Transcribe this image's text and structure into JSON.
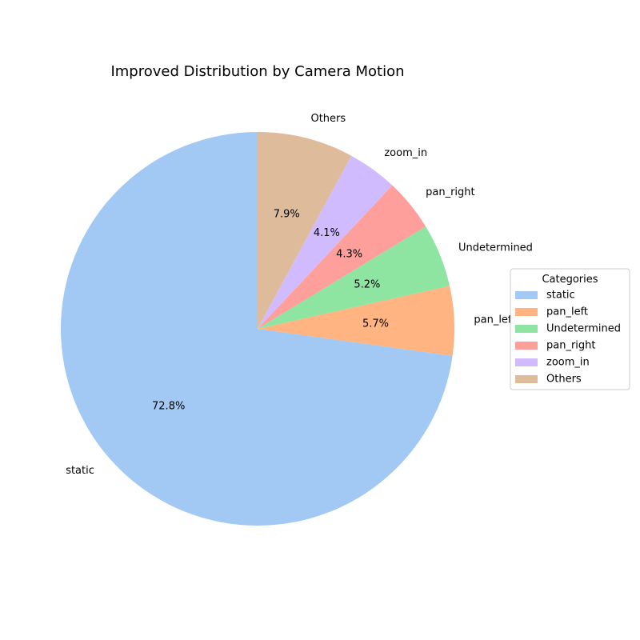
{
  "chart_data": {
    "type": "pie",
    "title": "Improved Distribution by Camera Motion",
    "labels": [
      "static",
      "pan_left",
      "Undetermined",
      "pan_right",
      "zoom_in",
      "Others"
    ],
    "values": [
      72.8,
      5.7,
      5.2,
      4.3,
      4.1,
      7.9
    ],
    "value_labels": [
      "72.8%",
      "5.7%",
      "5.2%",
      "4.3%",
      "4.1%",
      "7.9%"
    ],
    "colors": [
      "#a1c9f4",
      "#ffb482",
      "#8de5a1",
      "#ff9f9b",
      "#d0bbff",
      "#debb9b"
    ],
    "start_angle_deg": 90,
    "direction": "counterclockwise",
    "legend": {
      "title": "Categories",
      "placement": "right",
      "entries": [
        "static",
        "pan_left",
        "Undetermined",
        "pan_right",
        "zoom_in",
        "Others"
      ]
    }
  }
}
